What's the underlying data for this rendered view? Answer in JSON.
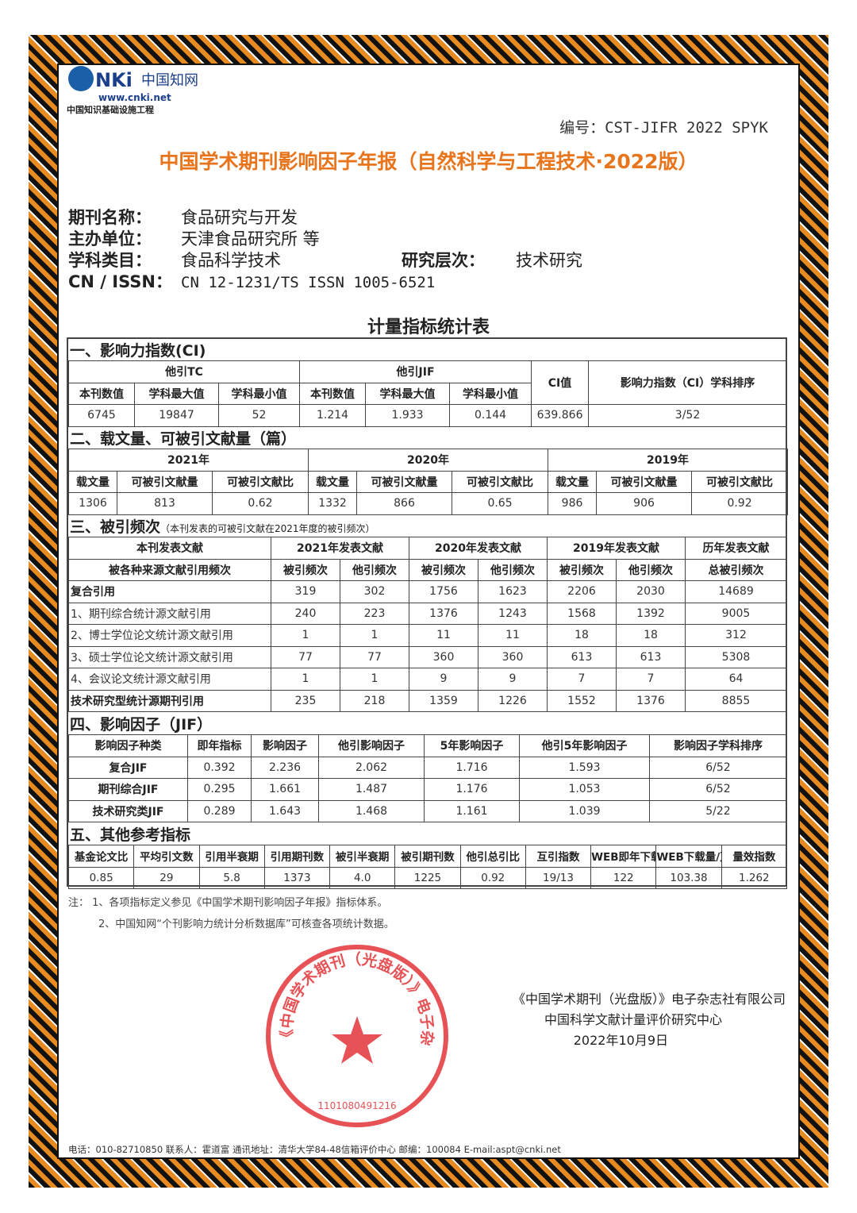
{
  "logo": {
    "brand": "CNKi中国知网",
    "url": "www.cnki.net",
    "tagline": "中国知识基础设施工程"
  },
  "code": "编号：CST-JIFR 2022 SPYK",
  "title": "中国学术期刊影响因子年报（自然科学与工程技术·2022版）",
  "info": {
    "name_label": "期刊名称：",
    "name": "食品研究与开发",
    "host_label": "主办单位：",
    "host": "天津食品研究所 等",
    "subject_label": "学科类目：",
    "subject": "食品科学技术",
    "level_label": "研究层次：",
    "level": "技术研究",
    "issn_label": "CN / ISSN：",
    "issn": "CN 12-1231/TS  ISSN 1005-6521"
  },
  "table_title": "计量指标统计表",
  "s1": {
    "title": "一、影响力指数(CI)",
    "g1": "他引TC",
    "g2": "他引JIF",
    "ci": "CI值",
    "rank": "影响力指数（CI）学科排序",
    "sub": [
      "本刊数值",
      "学科最大值",
      "学科最小值",
      "本刊数值",
      "学科最大值",
      "学科最小值"
    ],
    "values": [
      "6745",
      "19847",
      "52",
      "1.214",
      "1.933",
      "0.144",
      "639.866",
      "3/52"
    ]
  },
  "s2": {
    "title": "二、载文量、可被引文献量（篇）",
    "years": [
      "2021年",
      "2020年",
      "2019年"
    ],
    "sub": [
      "载文量",
      "可被引文献量",
      "可被引文献比"
    ],
    "values": [
      "1306",
      "813",
      "0.62",
      "1332",
      "866",
      "0.65",
      "986",
      "906",
      "0.92"
    ]
  },
  "s3": {
    "title": "三、被引频次",
    "note": "（本刊发表的可被引文献在2021年度的被引频次）",
    "h1": "本刊发表文献",
    "h2": "被各种来源文献引用频次",
    "years": [
      "2021年发表文献",
      "2020年发表文献",
      "2019年发表文献"
    ],
    "all": "历年发表文献",
    "sub": [
      "被引频次",
      "他引频次"
    ],
    "total": "总被引频次",
    "rows": [
      [
        "复合引用",
        "319",
        "302",
        "1756",
        "1623",
        "2206",
        "2030",
        "14689"
      ],
      [
        "1、期刊综合统计源文献引用",
        "240",
        "223",
        "1376",
        "1243",
        "1568",
        "1392",
        "9005"
      ],
      [
        "2、博士学位论文统计源文献引用",
        "1",
        "1",
        "11",
        "11",
        "18",
        "18",
        "312"
      ],
      [
        "3、硕士学位论文统计源文献引用",
        "77",
        "77",
        "360",
        "360",
        "613",
        "613",
        "5308"
      ],
      [
        "4、会议论文统计源文献引用",
        "1",
        "1",
        "9",
        "9",
        "7",
        "7",
        "64"
      ],
      [
        "技术研究型统计源期刊引用",
        "235",
        "218",
        "1359",
        "1226",
        "1552",
        "1376",
        "8855"
      ]
    ]
  },
  "s4": {
    "title": "四、影响因子（JIF）",
    "headers": [
      "影响因子种类",
      "即年指标",
      "影响因子",
      "他引影响因子",
      "5年影响因子",
      "他引5年影响因子",
      "影响因子学科排序"
    ],
    "rows": [
      [
        "复合JIF",
        "0.392",
        "2.236",
        "2.062",
        "1.716",
        "1.593",
        "6/52"
      ],
      [
        "期刊综合JIF",
        "0.295",
        "1.661",
        "1.487",
        "1.176",
        "1.053",
        "6/52"
      ],
      [
        "技术研究类JIF",
        "0.289",
        "1.643",
        "1.468",
        "1.161",
        "1.039",
        "5/22"
      ]
    ]
  },
  "s5": {
    "title": "五、其他参考指标",
    "headers": [
      "基金论文比",
      "平均引文数",
      "引用半衰期",
      "引用期刊数",
      "被引半衰期",
      "被引期刊数",
      "他引总引比",
      "互引指数",
      "WEB即年下载率",
      "WEB下载量/万次",
      "量效指数"
    ],
    "values": [
      "0.85",
      "29",
      "5.8",
      "1373",
      "4.0",
      "1225",
      "0.92",
      "19/13",
      "122",
      "103.38",
      "1.262"
    ]
  },
  "notes": [
    "注：  1、各项指标定义参见《中国学术期刊影响因子年报》指标体系。",
    "2、中国知网“个刊影响力统计分析数据库”可核查各项统计数据。"
  ],
  "sign": [
    "《中国学术期刊（光盘版）》电子杂志社有限公司",
    "中国科学文献计量评价研究中心",
    "2022年10月9日"
  ],
  "stamp": {
    "text": "《中国学术期刊（光盘版）》电子杂志社有限公司",
    "number": "1101080491216",
    "color": "#e0282c"
  },
  "footer": "电话：010-82710850 联系人：霍道富 通讯地址：清华大学84-48信箱评价中心 邮编：100084 E-mail:aspt@cnki.net",
  "colors": {
    "title": "#e8741c",
    "border_orange": "#e88a22",
    "border_black": "#111111"
  }
}
